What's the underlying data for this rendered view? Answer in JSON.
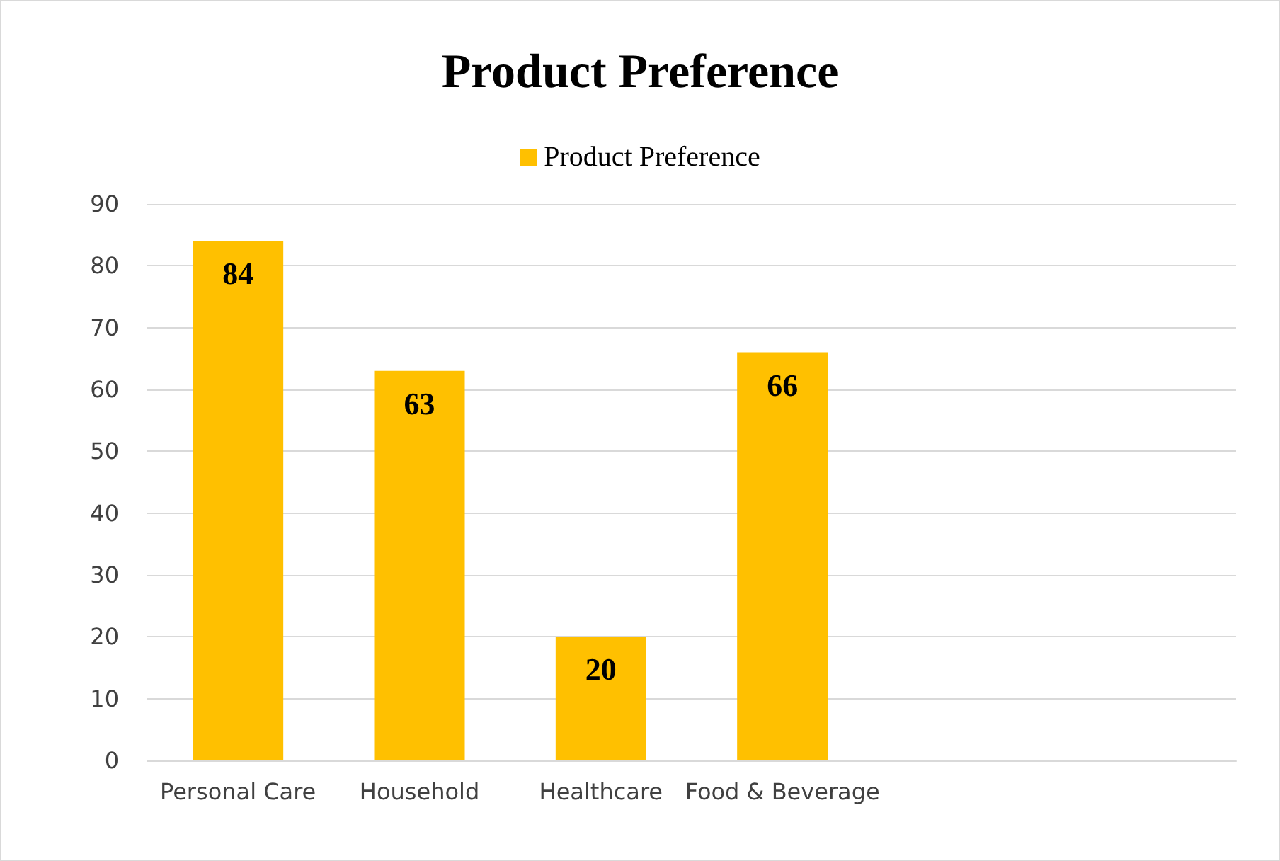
{
  "chart_data": {
    "type": "bar",
    "title": "Product Preference",
    "categories": [
      "Personal Care",
      "Household",
      "Healthcare",
      "Food & Beverage",
      null,
      null
    ],
    "series": [
      {
        "name": "Product Preference",
        "color": "#ffc000",
        "values": [
          84,
          63,
          20,
          66,
          null,
          null
        ]
      }
    ],
    "ylim": [
      0,
      90
    ],
    "yticks": [
      0,
      10,
      20,
      30,
      40,
      50,
      60,
      70,
      80,
      90
    ],
    "grid": "y",
    "legend": "top",
    "data_labels": true
  }
}
